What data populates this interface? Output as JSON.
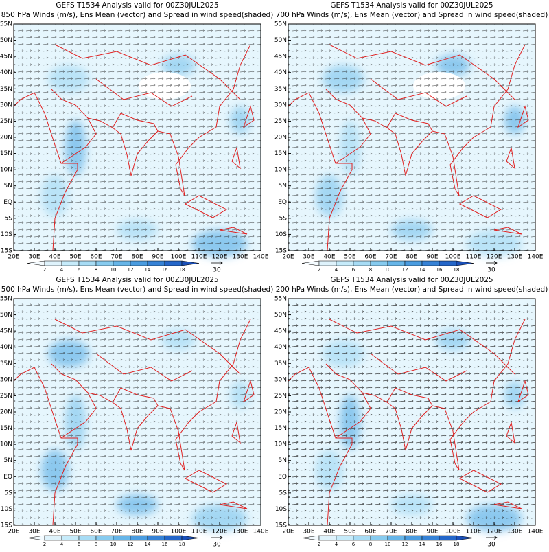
{
  "panels": [
    {
      "title_line1": "GEFS T1534 Analysis valid for 00Z30JUL2025",
      "title_line2": "850 hPa Winds (m/s), Ens Mean (vector) and Spread in wind speed(shaded)"
    },
    {
      "title_line1": "GEFS T1534 Analysis valid for 00Z30JUL2025",
      "title_line2": "700 hPa Winds (m/s), Ens Mean (vector) and Spread in wind speed(shaded)"
    },
    {
      "title_line1": "GEFS T1534 Analysis valid for 00Z30JUL2025",
      "title_line2": "500 hPa Winds (m/s), Ens Mean (vector) and Spread in wind speed(shaded)"
    },
    {
      "title_line1": "GEFS T1534 Analysis valid for 00Z30JUL2025",
      "title_line2": "200 hPa Winds (m/s), Ens Mean (vector) and Spread in wind speed(shaded)"
    }
  ],
  "lat_labels": [
    "55N",
    "50N",
    "45N",
    "40N",
    "35N",
    "30N",
    "25N",
    "20N",
    "15N",
    "10N",
    "5N",
    "EQ",
    "5S",
    "10S",
    "15S"
  ],
  "lon_labels": [
    "20E",
    "30E",
    "40E",
    "50E",
    "60E",
    "70E",
    "80E",
    "90E",
    "100E",
    "110E",
    "120E",
    "130E",
    "140E"
  ],
  "colorbar_labels": [
    2,
    4,
    6,
    8,
    10,
    12,
    14,
    16,
    18
  ],
  "reference_vector": "30"
}
